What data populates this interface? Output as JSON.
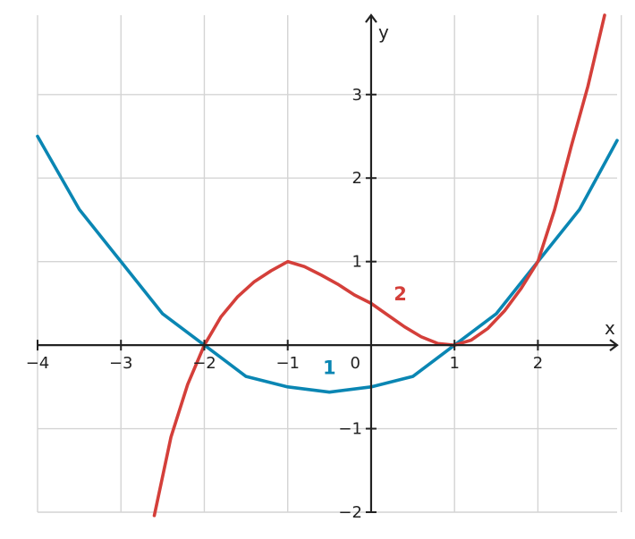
{
  "chart_data": {
    "type": "line",
    "xlabel": "x",
    "ylabel": "y",
    "xlim": [
      -4,
      2.95
    ],
    "ylim": [
      -2,
      3.95
    ],
    "grid": true,
    "origin_label": "0",
    "x_ticks": [
      {
        "value": -4,
        "label": "−4"
      },
      {
        "value": -3,
        "label": "−3"
      },
      {
        "value": -2,
        "label": "−2"
      },
      {
        "value": -1,
        "label": "−1"
      },
      {
        "value": 1,
        "label": "1"
      },
      {
        "value": 2,
        "label": "2"
      }
    ],
    "y_ticks": [
      {
        "value": -2,
        "label": "−2"
      },
      {
        "value": -1,
        "label": "−1"
      },
      {
        "value": 1,
        "label": "1"
      },
      {
        "value": 2,
        "label": "2"
      },
      {
        "value": 3,
        "label": "3"
      }
    ],
    "series": [
      {
        "label": "1",
        "color": "#0a86b3",
        "label_at": [
          -0.5,
          -0.28
        ],
        "x": [
          -4,
          -3.5,
          -3,
          -2.5,
          -2,
          -1.5,
          -1,
          -0.5,
          0,
          0.5,
          1,
          1.5,
          2,
          2.5,
          2.95
        ],
        "y": [
          2.5,
          1.625,
          1.0,
          0.375,
          0.0,
          -0.375,
          -0.5,
          -0.5625,
          -0.5,
          -0.375,
          0.0,
          0.375,
          1.0,
          1.625,
          2.45
        ]
      },
      {
        "label": "2",
        "color": "#d43f3a",
        "label_at": [
          0.35,
          0.6
        ],
        "x": [
          -2.6,
          -2.4,
          -2.2,
          -2,
          -1.8,
          -1.6,
          -1.4,
          -1.2,
          -1,
          -0.8,
          -0.6,
          -0.4,
          -0.2,
          0,
          0.2,
          0.4,
          0.6,
          0.8,
          1,
          1.2,
          1.4,
          1.6,
          1.8,
          2,
          2.2,
          2.4,
          2.6,
          2.8
        ],
        "y": [
          -2.04,
          -1.1,
          -0.47,
          0.0,
          0.34,
          0.58,
          0.76,
          0.89,
          1.0,
          0.94,
          0.84,
          0.73,
          0.6,
          0.5,
          0.36,
          0.22,
          0.1,
          0.02,
          0.0,
          0.06,
          0.2,
          0.41,
          0.68,
          1.0,
          1.62,
          2.38,
          3.1,
          3.95
        ]
      }
    ]
  }
}
